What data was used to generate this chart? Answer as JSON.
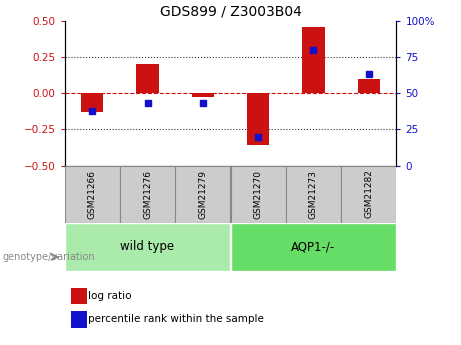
{
  "title": "GDS899 / Z3003B04",
  "samples": [
    "GSM21266",
    "GSM21276",
    "GSM21279",
    "GSM21270",
    "GSM21273",
    "GSM21282"
  ],
  "log_ratio": [
    -0.13,
    0.2,
    -0.025,
    -0.355,
    0.455,
    0.1
  ],
  "percentile_rank": [
    38,
    43,
    43,
    20,
    80,
    63
  ],
  "groups": [
    {
      "label": "wild type",
      "start": 0,
      "end": 2,
      "color": "#aaeaaa"
    },
    {
      "label": "AQP1-/-",
      "start": 3,
      "end": 5,
      "color": "#66dd66"
    }
  ],
  "bar_color_red": "#cc1111",
  "bar_color_blue": "#1111cc",
  "bar_width": 0.4,
  "ylim_left": [
    -0.5,
    0.5
  ],
  "ylim_right": [
    0,
    100
  ],
  "yticks_left": [
    -0.5,
    -0.25,
    0,
    0.25,
    0.5
  ],
  "yticks_right": [
    0,
    25,
    50,
    75,
    100
  ],
  "genotype_label": "genotype/variation",
  "legend_log_ratio": "log ratio",
  "legend_percentile": "percentile rank within the sample",
  "sample_box_color": "#cccccc",
  "sample_box_edge": "#888888",
  "dotted_zero_color": "#cc1111",
  "dotted_grid_color": "#333333"
}
